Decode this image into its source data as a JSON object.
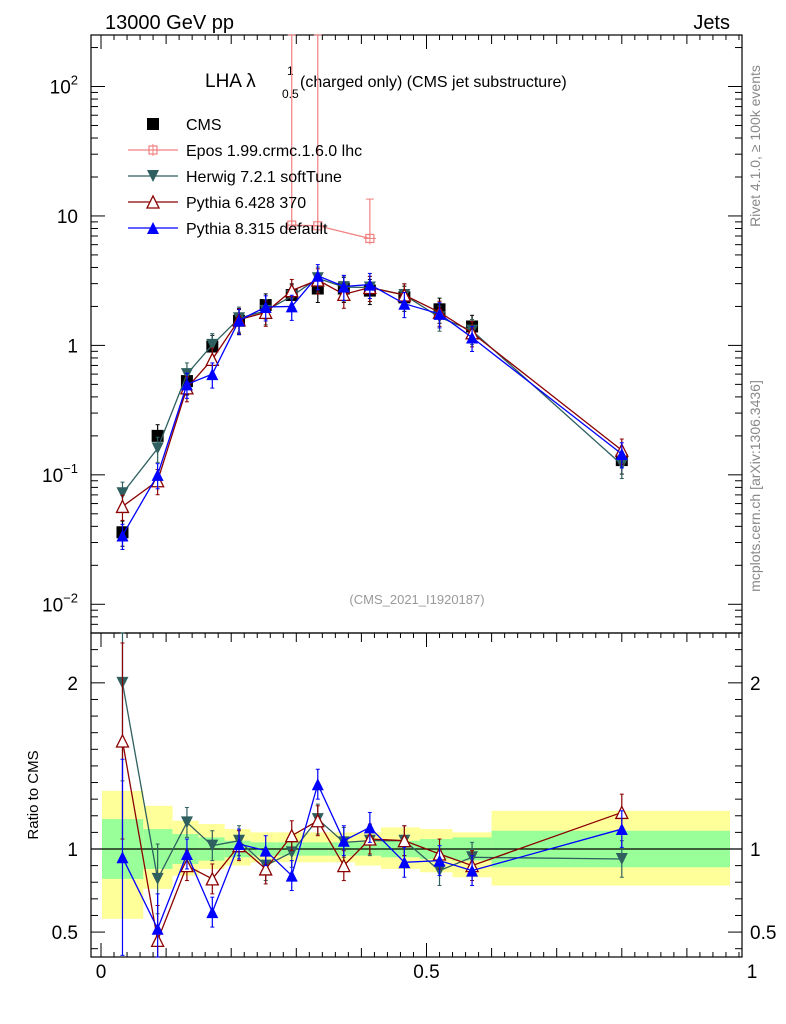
{
  "header": {
    "energy_label": "13000 GeV pp",
    "process_label": "Jets",
    "side_label_rivet": "Rivet 4.1.0, ≥ 100k events",
    "side_label_site": "mcplots.cern.ch [arXiv:1306.3436]",
    "analysis_id": "(CMS_2021_I1920187)"
  },
  "title": {
    "main": "LHA λ",
    "sup": "1",
    "sub": "0.5",
    "suffix": "(charged only) (CMS jet substructure)"
  },
  "ratio_ylabel": "Ratio to CMS",
  "colors": {
    "cms": "#000000",
    "epos": "#f08080",
    "herwig": "#2f5f5f",
    "pythia6": "#8b0000",
    "pythia8": "#0000ff",
    "band_inner": "#99ff99",
    "band_outer": "#ffff99"
  },
  "chart_data": [
    {
      "type": "scatter",
      "panel": "main",
      "yscale": "log",
      "xlim": [
        0,
        1
      ],
      "ylim": [
        0.006,
        250
      ],
      "yticks": [
        {
          "label": "10",
          "exp": "−2",
          "value": 0.01
        },
        {
          "label": "10",
          "exp": "−1",
          "value": 0.1
        },
        {
          "label": "1",
          "exp": "",
          "value": 1
        },
        {
          "label": "10",
          "exp": "",
          "value": 10
        },
        {
          "label": "10",
          "exp": "2",
          "value": 100
        }
      ],
      "x": [
        0.033,
        0.087,
        0.132,
        0.171,
        0.212,
        0.253,
        0.293,
        0.333,
        0.373,
        0.413,
        0.466,
        0.52,
        0.57,
        0.8
      ],
      "series": [
        {
          "name": "CMS",
          "key": "cms",
          "marker": "square",
          "line": false,
          "values": [
            0.036,
            0.2,
            0.53,
            0.98,
            1.55,
            2.05,
            2.45,
            2.75,
            2.75,
            2.65,
            2.35,
            1.9,
            1.4,
            0.13
          ]
        },
        {
          "name": "Epos 1.99.crmc.1.6.0 lhc",
          "key": "epos",
          "marker": "cross",
          "line": true,
          "x": [
            0.293,
            0.333,
            0.413
          ],
          "values": [
            8.5,
            8.4,
            6.7
          ],
          "err_low": [
            0.0001,
            0.0001,
            0.0001
          ],
          "err_high": [
            250,
            250,
            13.5
          ]
        },
        {
          "name": "Herwig 7.2.1 softTune",
          "key": "herwig",
          "marker": "triangle-down",
          "line": true,
          "values": [
            0.072,
            0.16,
            0.6,
            1.01,
            1.62,
            1.85,
            2.4,
            3.3,
            2.82,
            2.8,
            2.45,
            1.65,
            1.3,
            0.12
          ]
        },
        {
          "name": "Pythia 6.428 370",
          "key": "pythia6",
          "marker": "triangle-up-open",
          "line": true,
          "values": [
            0.057,
            0.09,
            0.47,
            0.78,
            1.58,
            1.8,
            2.65,
            3.2,
            2.48,
            2.8,
            2.45,
            1.8,
            1.25,
            0.155
          ]
        },
        {
          "name": "Pythia 8.315 default",
          "key": "pythia8",
          "marker": "triangle-up",
          "line": true,
          "values": [
            0.034,
            0.1,
            0.5,
            0.6,
            1.56,
            1.98,
            2.0,
            3.45,
            2.85,
            2.95,
            2.1,
            1.75,
            1.15,
            0.145
          ]
        }
      ]
    },
    {
      "type": "scatter",
      "panel": "ratio",
      "ylabel": "Ratio to CMS",
      "xlim": [
        0,
        1
      ],
      "ylim": [
        0.35,
        2.3
      ],
      "yticks": [
        {
          "label": "0.5",
          "value": 0.5
        },
        {
          "label": "1",
          "value": 1
        },
        {
          "label": "2",
          "value": 2
        }
      ],
      "xticks": [
        {
          "label": "0",
          "value": 0
        },
        {
          "label": "0.5",
          "value": 0.5
        },
        {
          "label": "1",
          "value": 1
        }
      ],
      "x": [
        0.033,
        0.087,
        0.132,
        0.171,
        0.212,
        0.253,
        0.293,
        0.333,
        0.373,
        0.413,
        0.466,
        0.52,
        0.57,
        0.8
      ],
      "bands": {
        "edges": [
          0.0,
          0.065,
          0.11,
          0.15,
          0.19,
          0.23,
          0.27,
          0.31,
          0.35,
          0.39,
          0.43,
          0.49,
          0.54,
          0.6,
          1.0
        ],
        "inner_low": [
          0.82,
          0.88,
          0.91,
          0.93,
          0.95,
          0.96,
          0.96,
          0.96,
          0.96,
          0.96,
          0.95,
          0.94,
          0.93,
          0.89
        ],
        "inner_high": [
          1.18,
          1.12,
          1.09,
          1.07,
          1.05,
          1.04,
          1.04,
          1.04,
          1.04,
          1.04,
          1.05,
          1.06,
          1.07,
          1.11
        ],
        "outer_low": [
          0.58,
          0.76,
          0.84,
          0.88,
          0.9,
          0.92,
          0.92,
          0.92,
          0.92,
          0.9,
          0.88,
          0.86,
          0.83,
          0.78
        ],
        "outer_high": [
          1.35,
          1.26,
          1.17,
          1.15,
          1.12,
          1.1,
          1.1,
          1.1,
          1.1,
          1.1,
          1.13,
          1.12,
          1.1,
          1.23
        ]
      },
      "series": [
        {
          "name": "Herwig 7.2.1 softTune",
          "key": "herwig",
          "marker": "triangle-down",
          "values": [
            2.0,
            0.82,
            1.16,
            1.02,
            1.05,
            0.9,
            0.98,
            1.18,
            1.04,
            1.05,
            1.05,
            0.87,
            0.95,
            0.94
          ]
        },
        {
          "name": "Pythia 6.428 370",
          "key": "pythia6",
          "marker": "triangle-up-open",
          "values": [
            1.65,
            0.45,
            0.9,
            0.82,
            1.02,
            0.88,
            1.08,
            1.17,
            0.9,
            1.06,
            1.05,
            0.97,
            0.9,
            1.22
          ]
        },
        {
          "name": "Pythia 8.315 default",
          "key": "pythia8",
          "marker": "triangle-up",
          "values": [
            0.95,
            0.52,
            0.97,
            0.62,
            1.03,
            0.99,
            0.84,
            1.39,
            1.05,
            1.13,
            0.92,
            0.93,
            0.87,
            1.12
          ]
        }
      ]
    }
  ]
}
